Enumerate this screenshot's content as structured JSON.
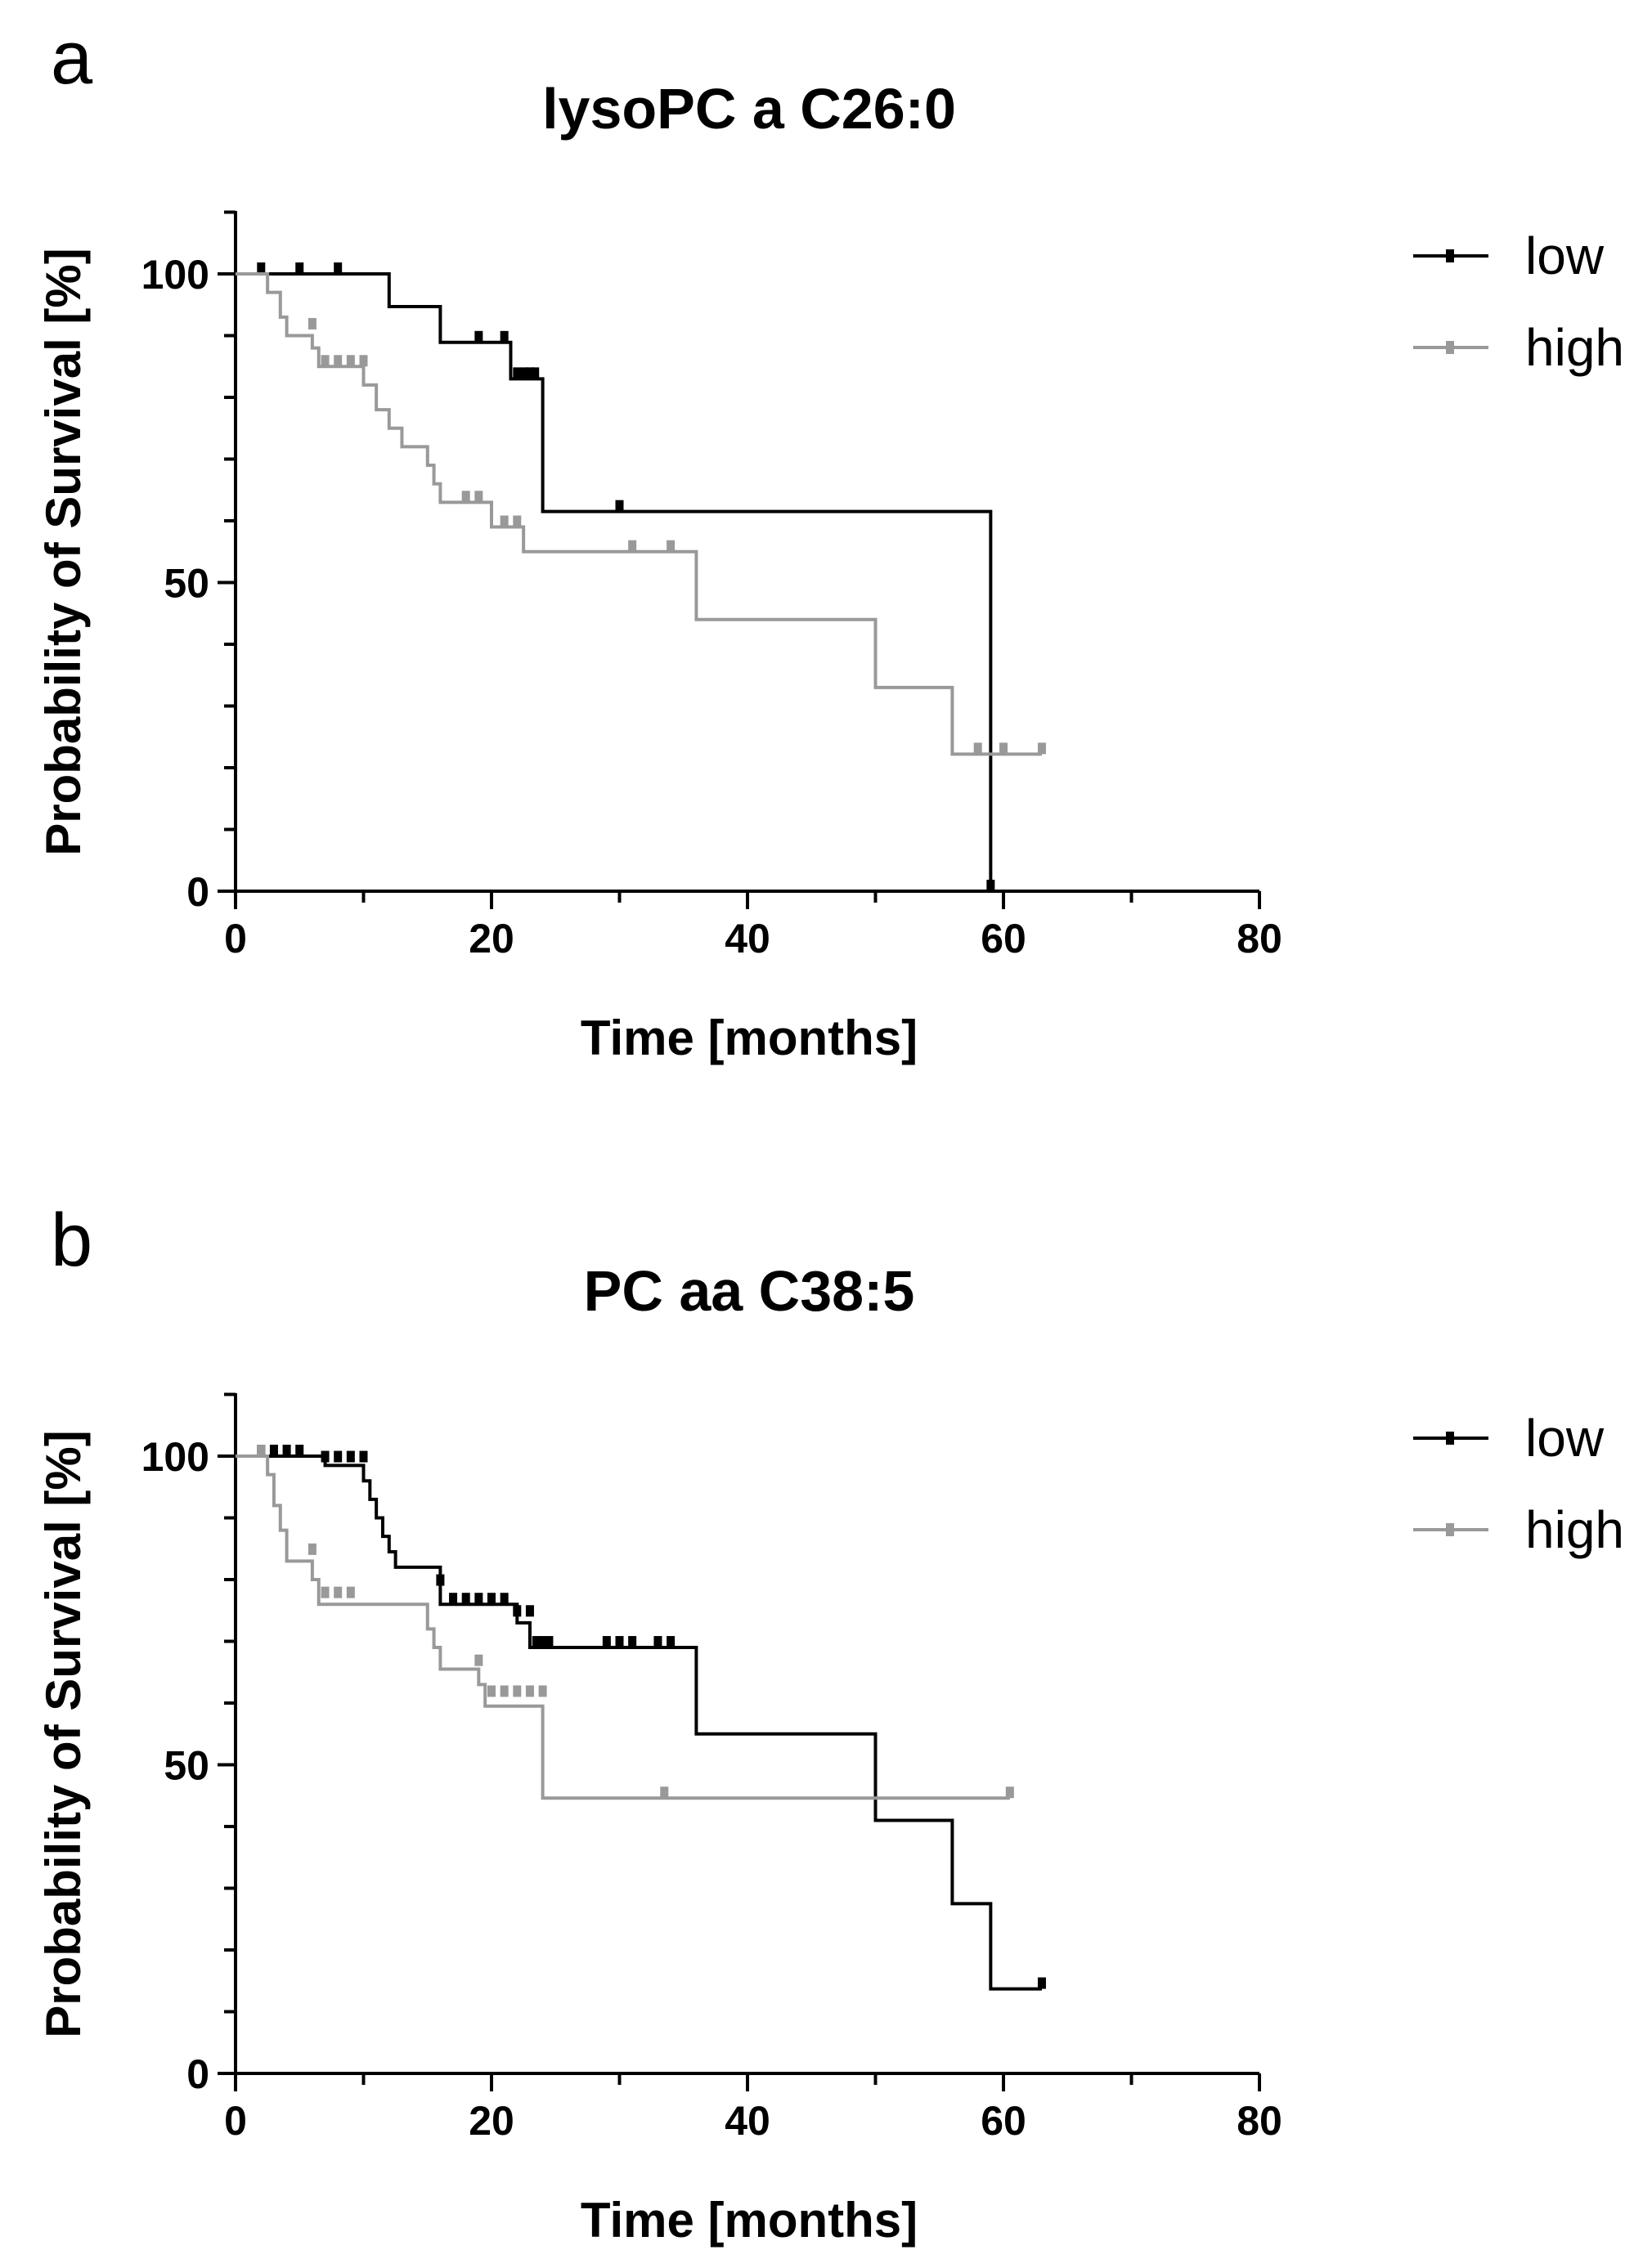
{
  "chart_data": [
    {
      "type": "line",
      "chart_subtype": "kaplan-meier",
      "panel_label": "a",
      "title": "lysoPC a C26:0",
      "xlabel": "Time [months]",
      "ylabel": "Probability of Survival [%]",
      "xlim": [
        0,
        80
      ],
      "ylim": [
        0,
        110
      ],
      "xticks": [
        0,
        20,
        40,
        60,
        80
      ],
      "yticks": [
        0,
        50,
        100
      ],
      "legend_position": "top-right",
      "grid": false,
      "series": [
        {
          "name": "low",
          "color": "#000000",
          "steps": [
            [
              0,
              100
            ],
            [
              12,
              94.7
            ],
            [
              16,
              88.9
            ],
            [
              21.5,
              83
            ],
            [
              24,
              61.5
            ],
            [
              59,
              0
            ]
          ],
          "end": 59,
          "censored": [
            [
              2,
              100
            ],
            [
              5,
              100
            ],
            [
              8,
              100
            ],
            [
              19,
              88.9
            ],
            [
              21,
              88.9
            ],
            [
              22,
              83
            ],
            [
              22.6,
              83
            ],
            [
              23,
              83
            ],
            [
              23.4,
              83
            ],
            [
              30,
              61.5
            ],
            [
              59,
              0
            ]
          ]
        },
        {
          "name": "high",
          "color": "#999999",
          "steps": [
            [
              0,
              100
            ],
            [
              2.5,
              97
            ],
            [
              3.5,
              93
            ],
            [
              4,
              90
            ],
            [
              6,
              88
            ],
            [
              6.5,
              85
            ],
            [
              10,
              82
            ],
            [
              11,
              78
            ],
            [
              12,
              75
            ],
            [
              13,
              72
            ],
            [
              15,
              69
            ],
            [
              15.5,
              66
            ],
            [
              16,
              63
            ],
            [
              20,
              59
            ],
            [
              22.5,
              55
            ],
            [
              36,
              44
            ],
            [
              50,
              33
            ],
            [
              56,
              22.2
            ]
          ],
          "end": 63,
          "censored": [
            [
              6,
              91
            ],
            [
              7,
              85
            ],
            [
              8,
              85
            ],
            [
              9,
              85
            ],
            [
              10,
              85
            ],
            [
              18,
              63
            ],
            [
              19,
              63
            ],
            [
              21,
              59
            ],
            [
              22,
              59
            ],
            [
              31,
              55
            ],
            [
              34,
              55
            ],
            [
              58,
              22.2
            ],
            [
              60,
              22.2
            ],
            [
              63,
              22.2
            ]
          ]
        }
      ]
    },
    {
      "type": "line",
      "chart_subtype": "kaplan-meier",
      "panel_label": "b",
      "title": "PC aa C38:5",
      "xlabel": "Time [months]",
      "ylabel": "Probability of Survival [%]",
      "xlim": [
        0,
        80
      ],
      "ylim": [
        0,
        110
      ],
      "xticks": [
        0,
        20,
        40,
        60,
        80
      ],
      "yticks": [
        0,
        50,
        100
      ],
      "legend_position": "top-right",
      "grid": false,
      "series": [
        {
          "name": "low",
          "color": "#000000",
          "steps": [
            [
              0,
              100
            ],
            [
              7,
              98.5
            ],
            [
              10,
              96
            ],
            [
              10.5,
              93
            ],
            [
              11,
              90
            ],
            [
              11.5,
              87
            ],
            [
              12,
              84.5
            ],
            [
              12.5,
              82
            ],
            [
              16,
              76
            ],
            [
              22,
              73
            ],
            [
              23,
              69
            ],
            [
              36,
              55
            ],
            [
              50,
              41
            ],
            [
              56,
              27.5
            ],
            [
              59,
              13.7
            ]
          ],
          "end": 63,
          "censored": [
            [
              2,
              100
            ],
            [
              3,
              100
            ],
            [
              4,
              100
            ],
            [
              5,
              100
            ],
            [
              7,
              99
            ],
            [
              8,
              99
            ],
            [
              9,
              99
            ],
            [
              10,
              99
            ],
            [
              16,
              79
            ],
            [
              17,
              76
            ],
            [
              18,
              76
            ],
            [
              19,
              76
            ],
            [
              20,
              76
            ],
            [
              21,
              76
            ],
            [
              22,
              74
            ],
            [
              23,
              74
            ],
            [
              23.5,
              69
            ],
            [
              24,
              69
            ],
            [
              24.5,
              69
            ],
            [
              29,
              69
            ],
            [
              30,
              69
            ],
            [
              31,
              69
            ],
            [
              33,
              69
            ],
            [
              34,
              69
            ],
            [
              63,
              13.7
            ]
          ]
        },
        {
          "name": "high",
          "color": "#999999",
          "steps": [
            [
              0,
              100
            ],
            [
              2.5,
              97
            ],
            [
              3,
              92
            ],
            [
              3.5,
              88
            ],
            [
              4,
              83
            ],
            [
              6,
              80
            ],
            [
              6.5,
              76
            ],
            [
              15,
              72
            ],
            [
              15.5,
              69
            ],
            [
              16,
              65.5
            ],
            [
              19,
              63
            ],
            [
              19.5,
              59.5
            ],
            [
              24,
              44.6
            ]
          ],
          "end": 60.5,
          "censored": [
            [
              2,
              100
            ],
            [
              6,
              84
            ],
            [
              7,
              77
            ],
            [
              8,
              77
            ],
            [
              9,
              77
            ],
            [
              19,
              66
            ],
            [
              20,
              61
            ],
            [
              21,
              61
            ],
            [
              22,
              61
            ],
            [
              23,
              61
            ],
            [
              24,
              61
            ],
            [
              33.5,
              44.6
            ],
            [
              60.5,
              44.6
            ]
          ]
        }
      ]
    }
  ]
}
